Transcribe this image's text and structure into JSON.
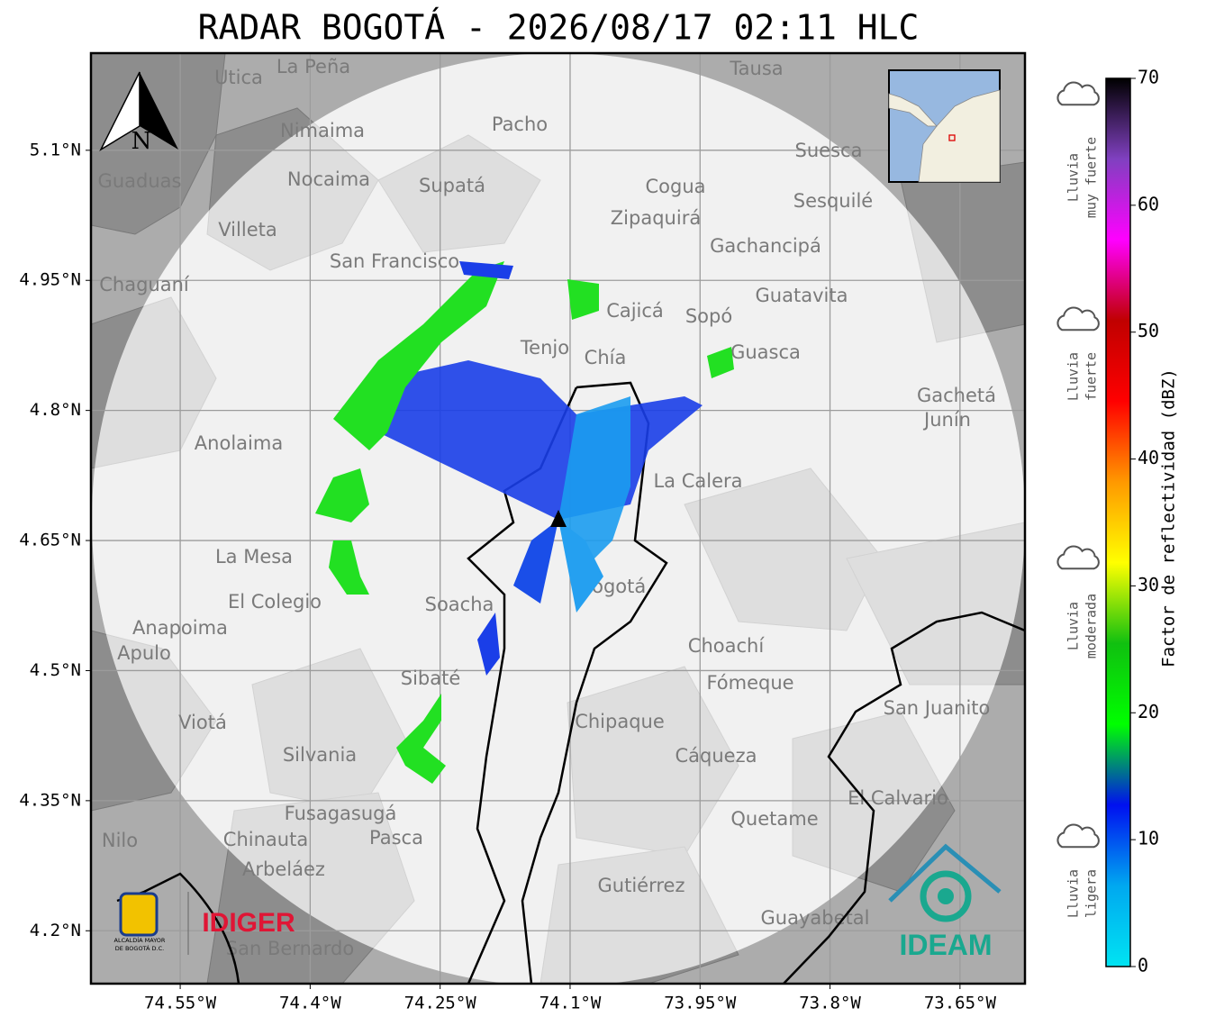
{
  "title": "RADAR BOGOTÁ - 2026/08/17 02:11 HLC",
  "map": {
    "lonlim": [
      -74.653,
      -73.575
    ],
    "latlim": [
      4.139,
      5.212
    ],
    "lon_ticks": [
      {
        "value": -74.55,
        "label": "74.55°W"
      },
      {
        "value": -74.4,
        "label": "74.4°W"
      },
      {
        "value": -74.25,
        "label": "74.25°W"
      },
      {
        "value": -74.1,
        "label": "74.1°W"
      },
      {
        "value": -73.95,
        "label": "73.95°W"
      },
      {
        "value": -73.8,
        "label": "73.8°W"
      },
      {
        "value": -73.65,
        "label": "73.65°W"
      }
    ],
    "lat_ticks": [
      {
        "value": 5.1,
        "label": "5.1°N"
      },
      {
        "value": 4.95,
        "label": "4.95°N"
      },
      {
        "value": 4.8,
        "label": "4.8°N"
      },
      {
        "value": 4.65,
        "label": "4.65°N"
      },
      {
        "value": 4.5,
        "label": "4.5°N"
      },
      {
        "value": 4.35,
        "label": "4.35°N"
      },
      {
        "value": 4.2,
        "label": "4.2°N"
      }
    ],
    "north": "N",
    "places": [
      "La Peña",
      "Utica",
      "Tausa",
      "Pacho",
      "Nimaima",
      "Guaduas",
      "Nocaima",
      "Supatá",
      "Suesca",
      "Cogua",
      "Sesquilé",
      "Zipaquirá",
      "Villeta",
      "Gachancipá",
      "San Francisco",
      "Chaguaní",
      "Guatavita",
      "Cajicá",
      "Sopó",
      "Tenjo",
      "Chía",
      "Guasca",
      "Gachetá",
      "Junín",
      "Anolaima",
      "La Calera",
      "La Mesa",
      "Bogotá",
      "El Colegio",
      "Soacha",
      "Anapoima",
      "Apulo",
      "Choachí",
      "Sibaté",
      "Fómeque",
      "San Juanito",
      "Viotá",
      "Chipaque",
      "Silvania",
      "Cáqueza",
      "El Calvario",
      "Fusagasugá",
      "Quetame",
      "Chinauta",
      "Pasca",
      "Nilo",
      "Arbeláez",
      "Gutiérrez",
      "Guayabetal",
      "San Bernardo"
    ]
  },
  "colorbar": {
    "label": "Factor de reflectividad (dBZ)",
    "lim": [
      0,
      70
    ],
    "ticks": [
      0,
      10,
      20,
      30,
      40,
      50,
      60,
      70
    ],
    "colors": [
      "#00e4f2",
      "#00a8f0",
      "#0010f0",
      "#00ff00",
      "#10c010",
      "#ffff00",
      "#ff9900",
      "#ff0000",
      "#c00000",
      "#ff00ff",
      "#8040c0",
      "#000000"
    ]
  },
  "legend": [
    {
      "lines": [
        "Lluvia",
        "muy fuerte"
      ]
    },
    {
      "lines": [
        "Lluvia",
        "fuerte"
      ]
    },
    {
      "lines": [
        "Lluvia",
        "moderada"
      ]
    },
    {
      "lines": [
        "Lluvia",
        "ligera"
      ]
    }
  ],
  "logos": {
    "alcaldia": [
      "ALCALDÍA MAYOR",
      "DE BOGOTÁ D.C."
    ],
    "idiger": "IDIGER",
    "ideam": "IDEAM"
  }
}
